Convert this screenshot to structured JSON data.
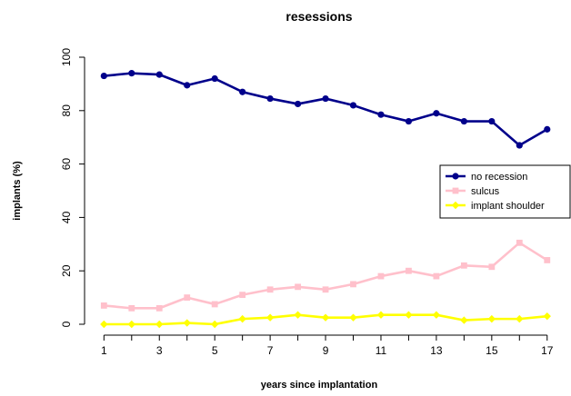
{
  "chart_data": {
    "type": "line",
    "title": "resessions",
    "xlabel": "years since implantation",
    "ylabel": "implants (%)",
    "x": [
      1,
      2,
      3,
      4,
      5,
      6,
      7,
      8,
      9,
      10,
      11,
      12,
      13,
      14,
      15,
      16,
      17
    ],
    "x_tick_labels": [
      "1",
      "3",
      "5",
      "7",
      "9",
      "11",
      "13",
      "15",
      "17"
    ],
    "y_tick_labels": [
      "0",
      "20",
      "40",
      "60",
      "80",
      "100"
    ],
    "xlim": [
      0.3,
      17.5
    ],
    "ylim": [
      0,
      100
    ],
    "grid": false,
    "legend_position": "right",
    "series": [
      {
        "name": "no recession",
        "color": "#00008B",
        "marker": "circle",
        "values": [
          93,
          94,
          93.5,
          89.5,
          92,
          87,
          84.5,
          82.5,
          84.5,
          82,
          78.5,
          76,
          79,
          76,
          76,
          67,
          73
        ]
      },
      {
        "name": "sulcus",
        "color": "#FFC0CB",
        "marker": "square",
        "values": [
          7,
          6,
          6,
          10,
          7.5,
          11,
          13,
          14,
          13,
          15,
          18,
          20,
          18,
          22,
          21.5,
          30.5,
          24
        ]
      },
      {
        "name": "implant shoulder",
        "color": "#FFFF00",
        "marker": "diamond",
        "values": [
          0,
          0,
          0,
          0.5,
          0,
          2,
          2.5,
          3.5,
          2.5,
          2.5,
          3.5,
          3.5,
          3.5,
          1.5,
          2,
          2,
          3
        ]
      }
    ]
  }
}
